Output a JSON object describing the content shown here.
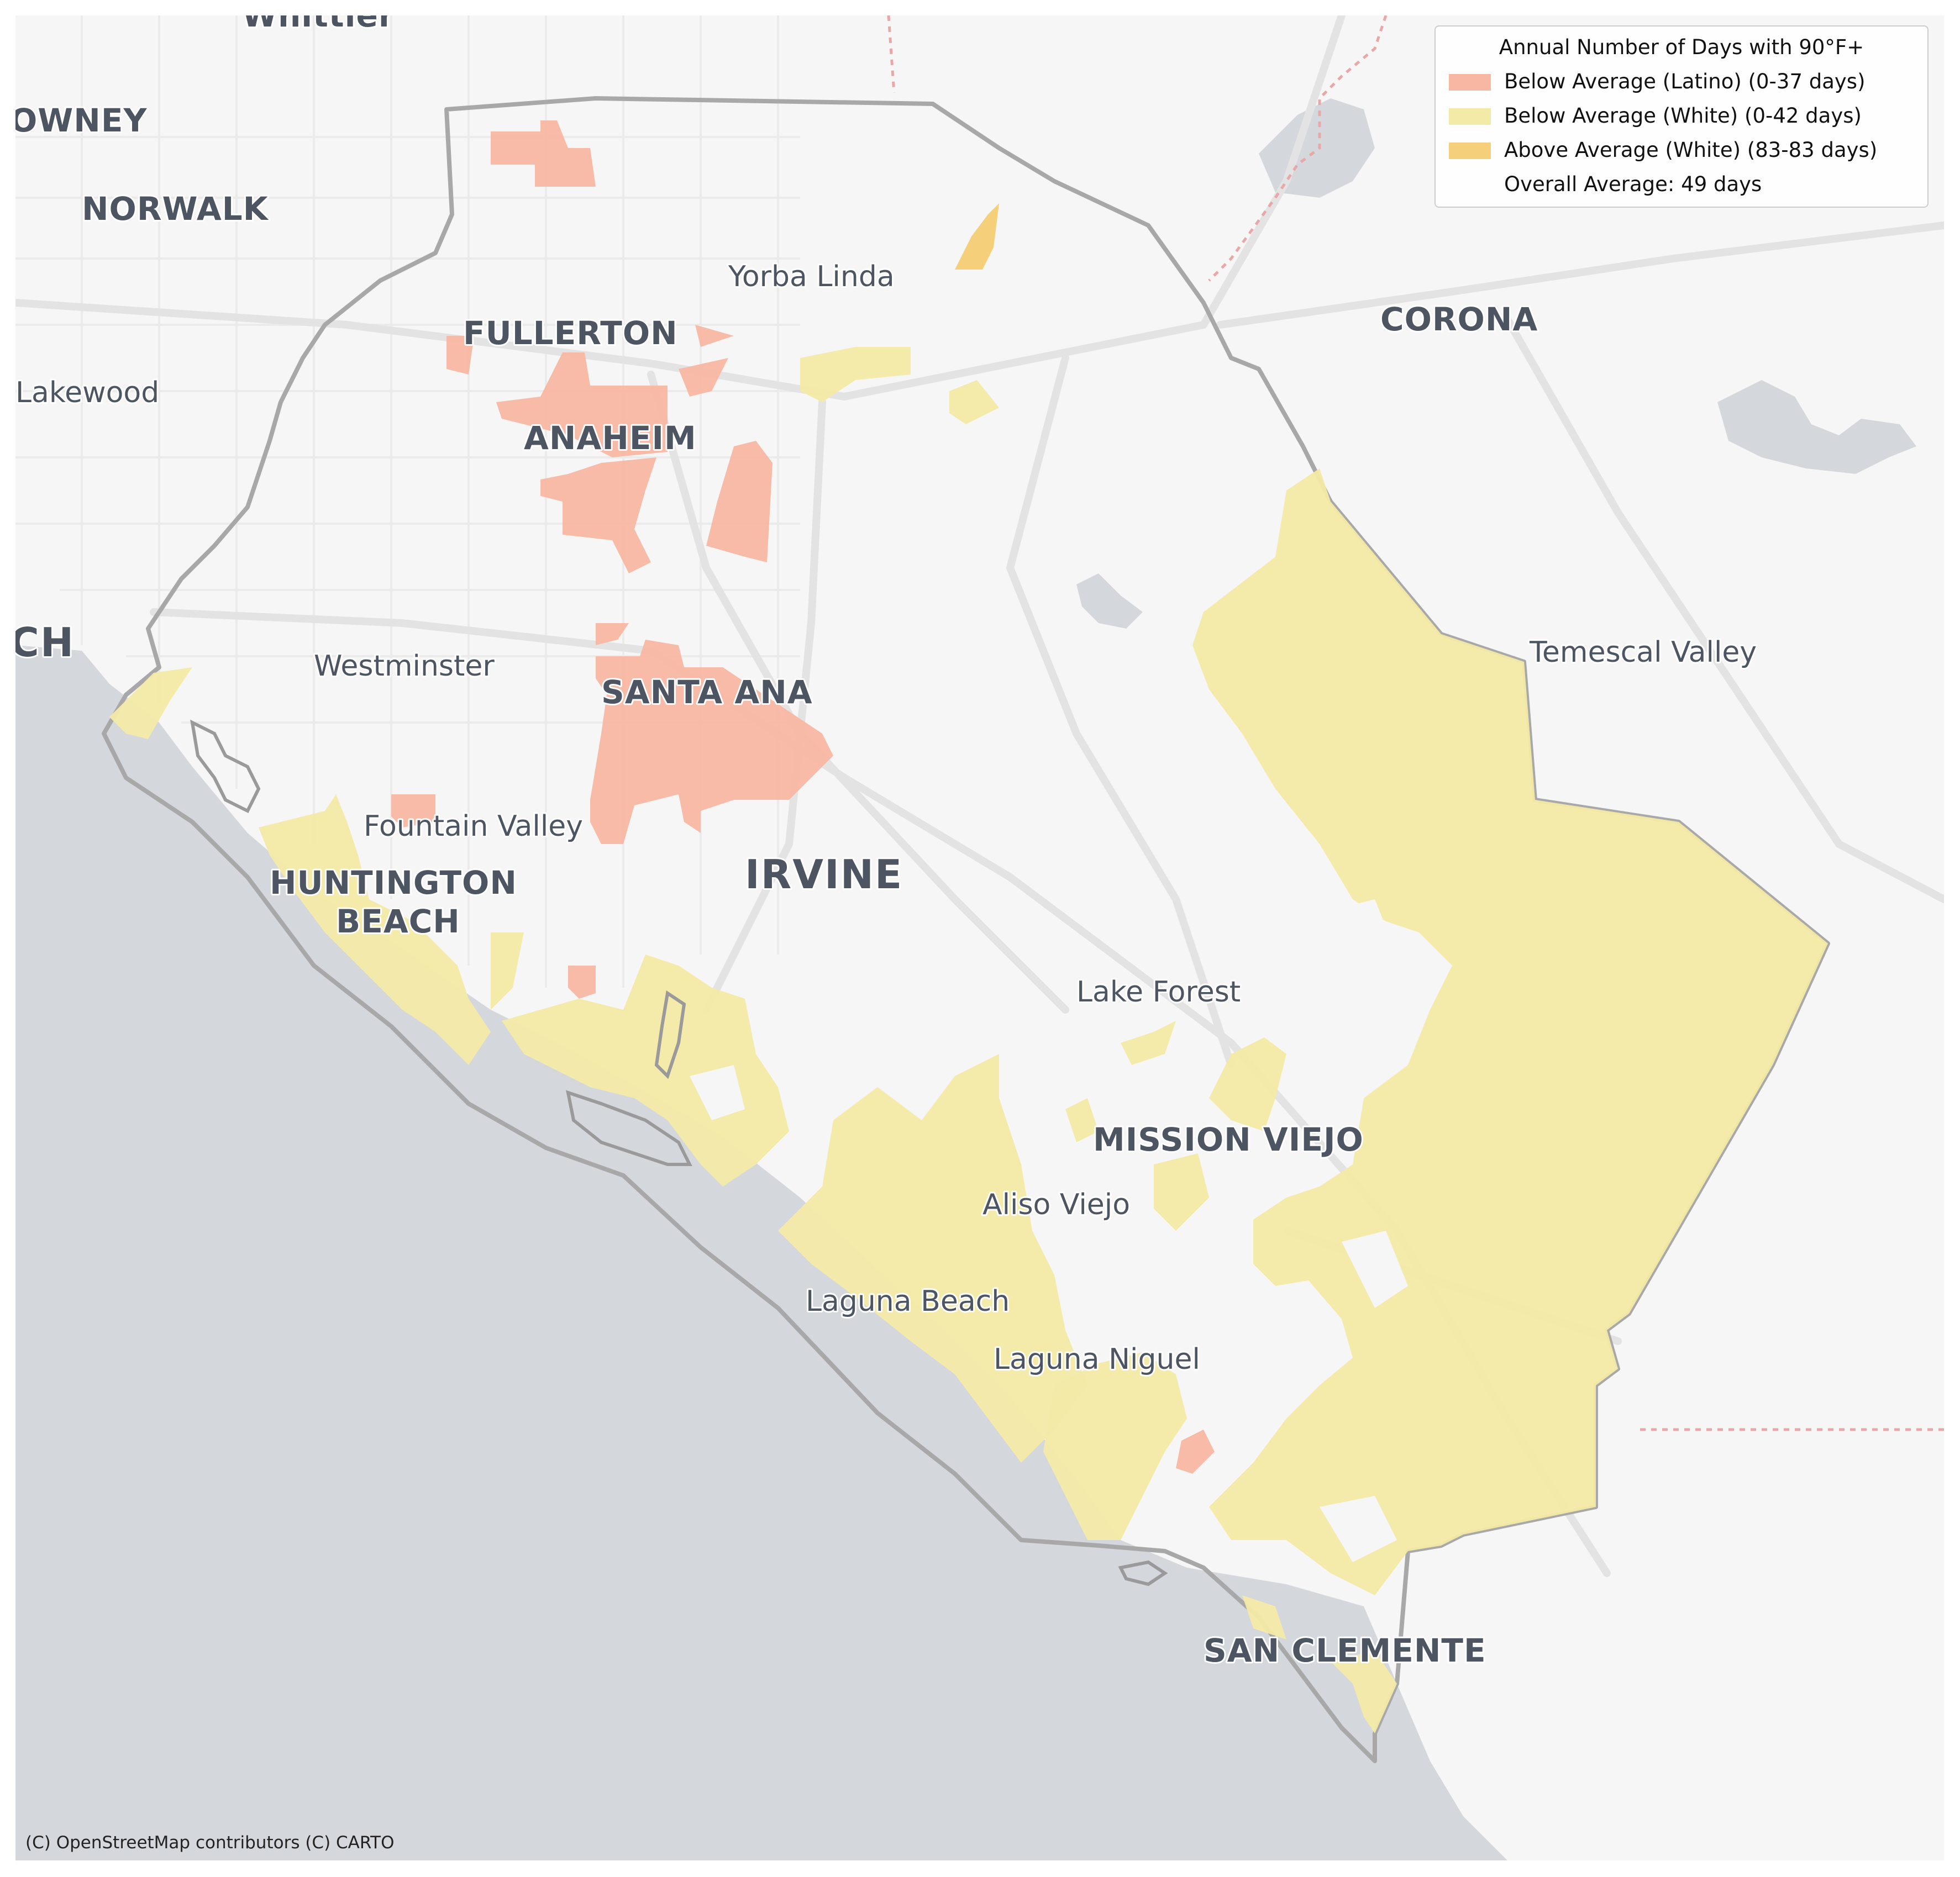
{
  "map": {
    "basemap": "CARTO light",
    "region": "Orange County, California",
    "colors": {
      "land": "#f6f6f6",
      "water": "#d4d8dc",
      "road": "#e0e0e0",
      "county_outline": "#a8a8a8",
      "below_latino": "#f7b7a3",
      "below_white": "#f3eaa7",
      "above_white": "#f5cf7a",
      "label_text": "#4d5563"
    }
  },
  "labels": {
    "whittier": "Whittier",
    "downey": "OWNEY",
    "norwalk": "NORWALK",
    "lakewood": "Lakewood",
    "long_beach_fragment": "CH",
    "fullerton": "FULLERTON",
    "yorba_linda": "Yorba Linda",
    "corona": "CORONA",
    "anaheim": "ANAHEIM",
    "westminster": "Westminster",
    "santa_ana": "SANTA ANA",
    "temescal_valley": "Temescal Valley",
    "fountain_valley": "Fountain Valley",
    "huntington_line1": "HUNTINGTON",
    "huntington_line2": "BEACH",
    "irvine": "IRVINE",
    "lake_forest": "Lake Forest",
    "mission_viejo": "MISSION VIEJO",
    "aliso_viejo": "Aliso Viejo",
    "laguna_beach": "Laguna Beach",
    "laguna_niguel": "Laguna Niguel",
    "san_clemente": "SAN CLEMENTE"
  },
  "legend": {
    "title": "Annual Number of Days with 90°F+",
    "items": [
      {
        "label": "Below Average (Latino) (0-37 days)",
        "color": "#f7b7a3"
      },
      {
        "label": "Below Average (White) (0-42 days)",
        "color": "#f3eaa7"
      },
      {
        "label": "Above Average (White) (83-83 days)",
        "color": "#f5cf7a"
      },
      {
        "label": "Overall Average: 49 days",
        "color": ""
      }
    ]
  },
  "attribution": "(C) OpenStreetMap contributors (C) CARTO"
}
